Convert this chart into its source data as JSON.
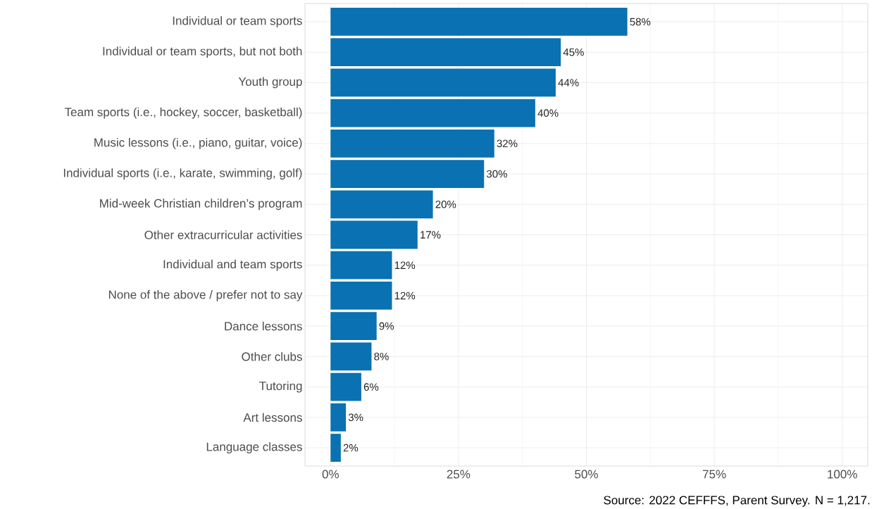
{
  "chart_data": {
    "type": "bar",
    "orientation": "horizontal",
    "categories": [
      "Individual or team sports",
      "Individual or team sports, but not both",
      "Youth group",
      "Team sports (i.e., hockey, soccer, basketball)",
      "Music lessons (i.e., piano, guitar, voice)",
      "Individual sports (i.e., karate, swimming, golf)",
      "Mid-week Christian children’s program",
      "Other extracurricular activities",
      "Individual and team sports",
      "None of the above / prefer not to say",
      "Dance lessons",
      "Other clubs",
      "Tutoring",
      "Art lessons",
      "Language classes"
    ],
    "values": [
      58,
      45,
      44,
      40,
      32,
      30,
      20,
      17,
      12,
      12,
      9,
      8,
      6,
      3,
      2
    ],
    "value_labels": [
      "58%",
      "45%",
      "44%",
      "40%",
      "32%",
      "30%",
      "20%",
      "17%",
      "12%",
      "12%",
      "9%",
      "8%",
      "6%",
      "3%",
      "2%"
    ],
    "color": "#0a71b2",
    "xlim": [
      -5,
      105
    ],
    "xticks": [
      {
        "value": 0,
        "label": "0%"
      },
      {
        "value": 25,
        "label": "25%"
      },
      {
        "value": 50,
        "label": "50%"
      },
      {
        "value": 75,
        "label": "75%"
      },
      {
        "value": 100,
        "label": "100%"
      }
    ],
    "grid": true,
    "annotations": [
      "Source: 2022 CEFFFS, Parent Survey. N = 1,217."
    ]
  }
}
